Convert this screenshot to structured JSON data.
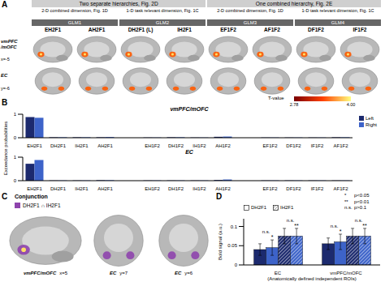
{
  "panels": {
    "A": {
      "letter": "A",
      "groups": [
        {
          "title": "Two separate hierarchies, Fig. 2D",
          "subgroups": [
            {
              "title": "2-D combined dimension, Fig. 1D",
              "glm": "GLM1",
              "maps": [
                "EH2F1",
                "AH2F1"
              ]
            },
            {
              "title": "1-D task relevant dimension, Fig. 1C",
              "glm": "GLM2",
              "maps": [
                "DH2F1 (L)",
                "IH2F1"
              ]
            }
          ]
        },
        {
          "title": "One combined hierarchy, Fig. 2E",
          "subgroups": [
            {
              "title": "2-D combined dimension, Fig. 1D",
              "glm": "GLM3",
              "maps": [
                "EF1F2",
                "AF1F2"
              ]
            },
            {
              "title": "1-D task relevant dimension, Fig. 1C",
              "glm": "GLM4",
              "maps": [
                "DF1F2",
                "IF1F2"
              ]
            }
          ]
        }
      ],
      "sagittal": {
        "region": "vmPFC /mOFC",
        "slice": "x=-5"
      },
      "coronal": {
        "region": "EC",
        "slice": "y=-6"
      },
      "colorbar": {
        "label": "T-value",
        "range": [
          2.78,
          4.0
        ],
        "ticks": [
          2.78,
          {
            "value": 4.0,
            "label": "4.00"
          }
        ]
      }
    },
    "B": {
      "letter": "B",
      "y_label": "Exceedance probabilities"
    },
    "C": {
      "letter": "C",
      "title": "Conjunction",
      "legend_label": "DH2F1 ∩ IH2F1",
      "legend_color": "#8e44ad",
      "images": [
        {
          "region": "vmPFC/mOFC",
          "slice": "x=5"
        },
        {
          "region": "EC",
          "slice": "y=7"
        },
        {
          "region": "EC",
          "slice": "y=6"
        }
      ]
    },
    "D": {
      "letter": "D",
      "significance": [
        {
          "mark": "*",
          "label": "p<0.05"
        },
        {
          "mark": "**",
          "label": "p<0.01"
        },
        {
          "mark": "n.s.",
          "label": "p>0.1"
        }
      ]
    }
  },
  "chart_data": [
    {
      "type": "bar",
      "title": "vmPFC/mOFC",
      "categories": [
        "EH2F1",
        "DH2F1",
        "IH2F1",
        "AH2F1",
        null,
        "EH1F2",
        "DH1F2",
        "IH1F2",
        "AH1F2",
        null,
        "EF1F2",
        "DF1F2",
        "IF1F2",
        "AF1F2"
      ],
      "series": [
        {
          "name": "Left",
          "color": "#1c2a6e",
          "values": [
            0.88,
            0.02,
            0.02,
            0.02,
            null,
            0.01,
            0.02,
            0.01,
            0.04,
            null,
            0.01,
            0.01,
            0.01,
            0.02
          ]
        },
        {
          "name": "Right",
          "color": "#3d63c9",
          "values": [
            0.85,
            0.02,
            0.02,
            0.03,
            null,
            0.01,
            0.02,
            0.01,
            0.05,
            null,
            0.01,
            0.01,
            0.01,
            0.02
          ]
        }
      ],
      "ylim": [
        0,
        1
      ],
      "yticks": [
        0,
        1
      ],
      "legend": "right"
    },
    {
      "type": "bar",
      "title": "EC",
      "categories": [
        "EH2F1",
        "DH2F1",
        "IH2F1",
        "AH2F1",
        null,
        "EH1F2",
        "DH1F2",
        "IH1F2",
        "AH1F2",
        null,
        "EF1F2",
        "DF1F2",
        "IF1F2",
        "AF1F2"
      ],
      "series": [
        {
          "name": "Left",
          "color": "#1c2a6e",
          "values": [
            0.72,
            0.01,
            0.01,
            0.02,
            null,
            0.01,
            0.01,
            0.01,
            0.03,
            null,
            0.01,
            0.01,
            0.01,
            0.01
          ]
        },
        {
          "name": "Right",
          "color": "#3d63c9",
          "values": [
            0.88,
            0.01,
            0.01,
            0.02,
            null,
            0.01,
            0.01,
            0.01,
            0.05,
            null,
            0.01,
            0.01,
            0.01,
            0.01
          ]
        }
      ],
      "ylim": [
        0,
        1
      ],
      "yticks": [
        0,
        1
      ]
    },
    {
      "type": "bar",
      "y_label": "Bold signal (a.u.)",
      "x_label": "(Anatomically defined independent ROIs)",
      "categories": [
        "EC",
        "vmPFC/mOFC"
      ],
      "series": [
        {
          "name": "DH2F1",
          "hemisphere": "Left",
          "color": "#1c2a6e",
          "values": [
            0.04,
            0.055
          ],
          "errors": [
            0.015,
            0.015
          ]
        },
        {
          "name": "DH2F1",
          "hemisphere": "Right",
          "color": "#3d63c9",
          "values": [
            0.045,
            0.06
          ],
          "errors": [
            0.02,
            0.02
          ]
        },
        {
          "name": "IH2F1",
          "hemisphere": "Left",
          "color": "#1c2a6e",
          "values": [
            0.075,
            0.075
          ],
          "errors": [
            0.02,
            0.02
          ]
        },
        {
          "name": "IH2F1",
          "hemisphere": "Right",
          "color": "#3d63c9",
          "values": [
            0.075,
            0.075
          ],
          "errors": [
            0.02,
            0.02
          ]
        }
      ],
      "annotations": [
        {
          "text": "n.s.",
          "category": 0,
          "series": [
            0,
            1
          ]
        },
        {
          "text": "n.s.",
          "category": 0,
          "series": [
            2,
            3
          ]
        },
        {
          "text": "*",
          "category": 0,
          "series": [
            1
          ]
        },
        {
          "text": "**",
          "category": 0,
          "series": [
            3
          ]
        },
        {
          "text": "n.s.",
          "category": 1,
          "series": [
            0,
            1
          ]
        },
        {
          "text": "n.s.",
          "category": 1,
          "series": [
            2,
            3
          ]
        },
        {
          "text": "*",
          "category": 1,
          "series": [
            1
          ]
        },
        {
          "text": "**",
          "category": 1,
          "series": [
            3
          ]
        }
      ],
      "ylim": [
        0,
        0.12
      ],
      "yticks": [
        0,
        0.05,
        0.1
      ],
      "legend": "top"
    }
  ]
}
